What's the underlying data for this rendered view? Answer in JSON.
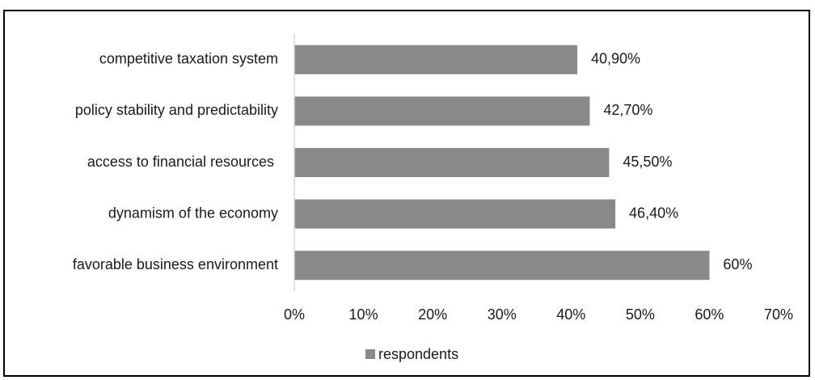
{
  "chart_data": {
    "type": "bar",
    "orientation": "horizontal",
    "title": "",
    "xlabel": "",
    "ylabel": "",
    "categories": [
      "competitive taxation system",
      "policy stability and predictability",
      "access to financial resources ",
      "dynamism of the economy",
      "favorable business environment"
    ],
    "series": [
      {
        "name": "respondents",
        "values": [
          40.9,
          42.7,
          45.5,
          46.4,
          60
        ],
        "value_labels": [
          "40,90%",
          "42,70%",
          "45,50%",
          "46,40%",
          "60%"
        ],
        "color": "#898989"
      }
    ],
    "xlim": [
      0,
      70
    ],
    "x_ticks": [
      0,
      10,
      20,
      30,
      40,
      50,
      60,
      70
    ],
    "x_tick_labels": [
      "0%",
      "10%",
      "20%",
      "30%",
      "40%",
      "50%",
      "60%",
      "70%"
    ],
    "grid": false,
    "legend_position": "bottom",
    "axis_color": "#d9d9d9"
  }
}
